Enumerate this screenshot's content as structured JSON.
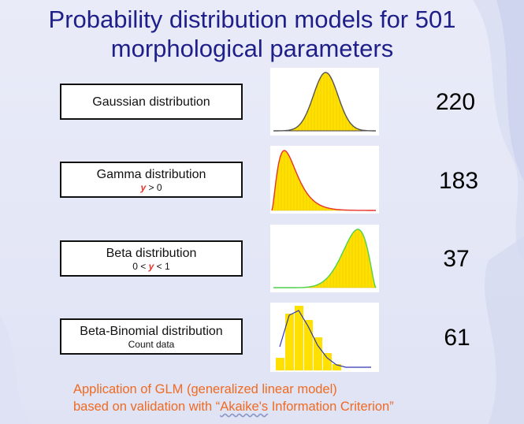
{
  "title": {
    "line1": "Probability distribution models for 501",
    "line2": "morphological parameters"
  },
  "models": [
    {
      "name": "Gaussian distribution",
      "count": "220"
    },
    {
      "name": "Gamma distribution",
      "sub_var": "y",
      "sub_rest": " > 0",
      "count": "183"
    },
    {
      "name": "Beta distribution",
      "sub_pre": "0 < ",
      "sub_var": "y",
      "sub_rest": " < 1",
      "count": "37"
    },
    {
      "name": "Beta-Binomial distribution",
      "sub": "Count data",
      "count": "61"
    }
  ],
  "footer": {
    "line1": "Application of GLM (generalized linear model)",
    "line2_pre": "based on validation with “",
    "line2_word": "Akaike's",
    "line2_post": " Information Criterion”"
  },
  "colors": {
    "title": "#1f1f8a",
    "bars": "#ffe000",
    "gamma_curve": "#e8322a",
    "beta_curve": "#4fd24a",
    "binomial_curve": "#2d37b0",
    "footer": "#f06a22"
  }
}
